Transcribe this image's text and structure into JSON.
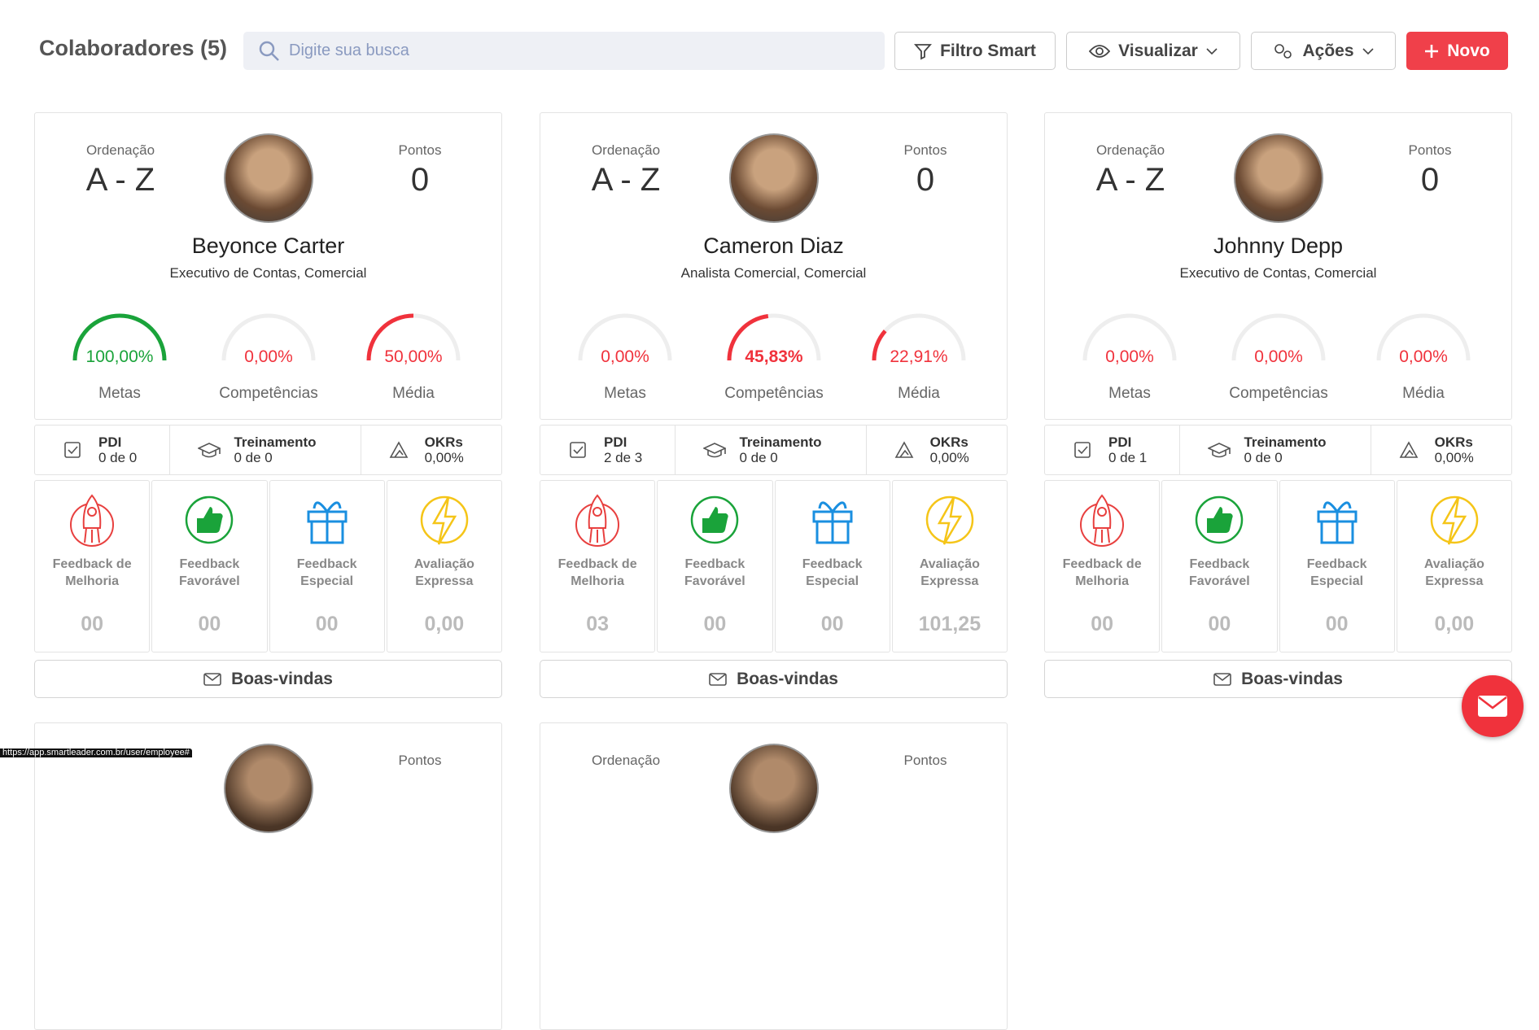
{
  "header": {
    "title": "Colaboradores (5)",
    "search_placeholder": "Digite sua busca",
    "buttons": [
      "Filtro Smart",
      "Visualizar",
      "Ações",
      "Novo"
    ]
  },
  "cards": [
    {
      "ordering_label": "Ordenação",
      "ordering": "A - Z",
      "points_label": "Pontos",
      "points": "0",
      "name": "Beyonce Carter",
      "role": "Executivo de Contas, Comercial",
      "gauges": [
        {
          "percent": 100,
          "label": "100,00%",
          "caption": "Metas"
        },
        {
          "percent": 0,
          "label": "0,00%",
          "caption": "Competências"
        },
        {
          "percent": 50,
          "label": "50,00%",
          "caption": "Média"
        }
      ],
      "stats": [
        {
          "title": "PDI",
          "value": "0 de 0"
        },
        {
          "title": "Treinamento",
          "value": "0 de 0"
        },
        {
          "title": "OKRs",
          "value": "0,00%"
        }
      ],
      "tiles": [
        {
          "label": "Feedback de Melhoria",
          "value": "00"
        },
        {
          "label": "Feedback Favorável",
          "value": "00"
        },
        {
          "label": "Feedback Especial",
          "value": "00"
        },
        {
          "label": "Avaliação Expressa",
          "value": "0,00"
        }
      ],
      "button": "Boas-vindas"
    },
    {
      "ordering_label": "Ordenação",
      "ordering": "A - Z",
      "points_label": "Pontos",
      "points": "0",
      "name": "Cameron Diaz",
      "role": "Analista Comercial, Comercial",
      "gauges": [
        {
          "percent": 0,
          "label": "0,00%",
          "caption": "Metas"
        },
        {
          "percent": 45.83,
          "label": "45,83%",
          "caption": "Competências"
        },
        {
          "percent": 22.91,
          "label": "22,91%",
          "caption": "Média"
        }
      ],
      "stats": [
        {
          "title": "PDI",
          "value": "2 de 3"
        },
        {
          "title": "Treinamento",
          "value": "0 de 0"
        },
        {
          "title": "OKRs",
          "value": "0,00%"
        }
      ],
      "tiles": [
        {
          "label": "Feedback de Melhoria",
          "value": "03"
        },
        {
          "label": "Feedback Favorável",
          "value": "00"
        },
        {
          "label": "Feedback Especial",
          "value": "00"
        },
        {
          "label": "Avaliação Expressa",
          "value": "101,25"
        }
      ],
      "button": "Boas-vindas"
    },
    {
      "ordering_label": "Ordenação",
      "ordering": "A - Z",
      "points_label": "Pontos",
      "points": "0",
      "name": "Johnny Depp",
      "role": "Executivo de Contas, Comercial",
      "gauges": [
        {
          "percent": 0,
          "label": "0,00%",
          "caption": "Metas"
        },
        {
          "percent": 0,
          "label": "0,00%",
          "caption": "Competências"
        },
        {
          "percent": 0,
          "label": "0,00%",
          "caption": "Média"
        }
      ],
      "stats": [
        {
          "title": "PDI",
          "value": "0 de 1"
        },
        {
          "title": "Treinamento",
          "value": "0 de 0"
        },
        {
          "title": "OKRs",
          "value": "0,00%"
        }
      ],
      "tiles": [
        {
          "label": "Feedback de Melhoria",
          "value": "00"
        },
        {
          "label": "Feedback Favorável",
          "value": "00"
        },
        {
          "label": "Feedback Especial",
          "value": "00"
        },
        {
          "label": "Avaliação Expressa",
          "value": "0,00"
        }
      ],
      "button": "Boas-vindas"
    }
  ],
  "partial_cards": [
    {
      "points_label": "Pontos"
    },
    {
      "ordering_label": "Ordenação",
      "points_label": "Pontos"
    }
  ],
  "status_url": "https://app.smartleader.com.br/user/employee#"
}
